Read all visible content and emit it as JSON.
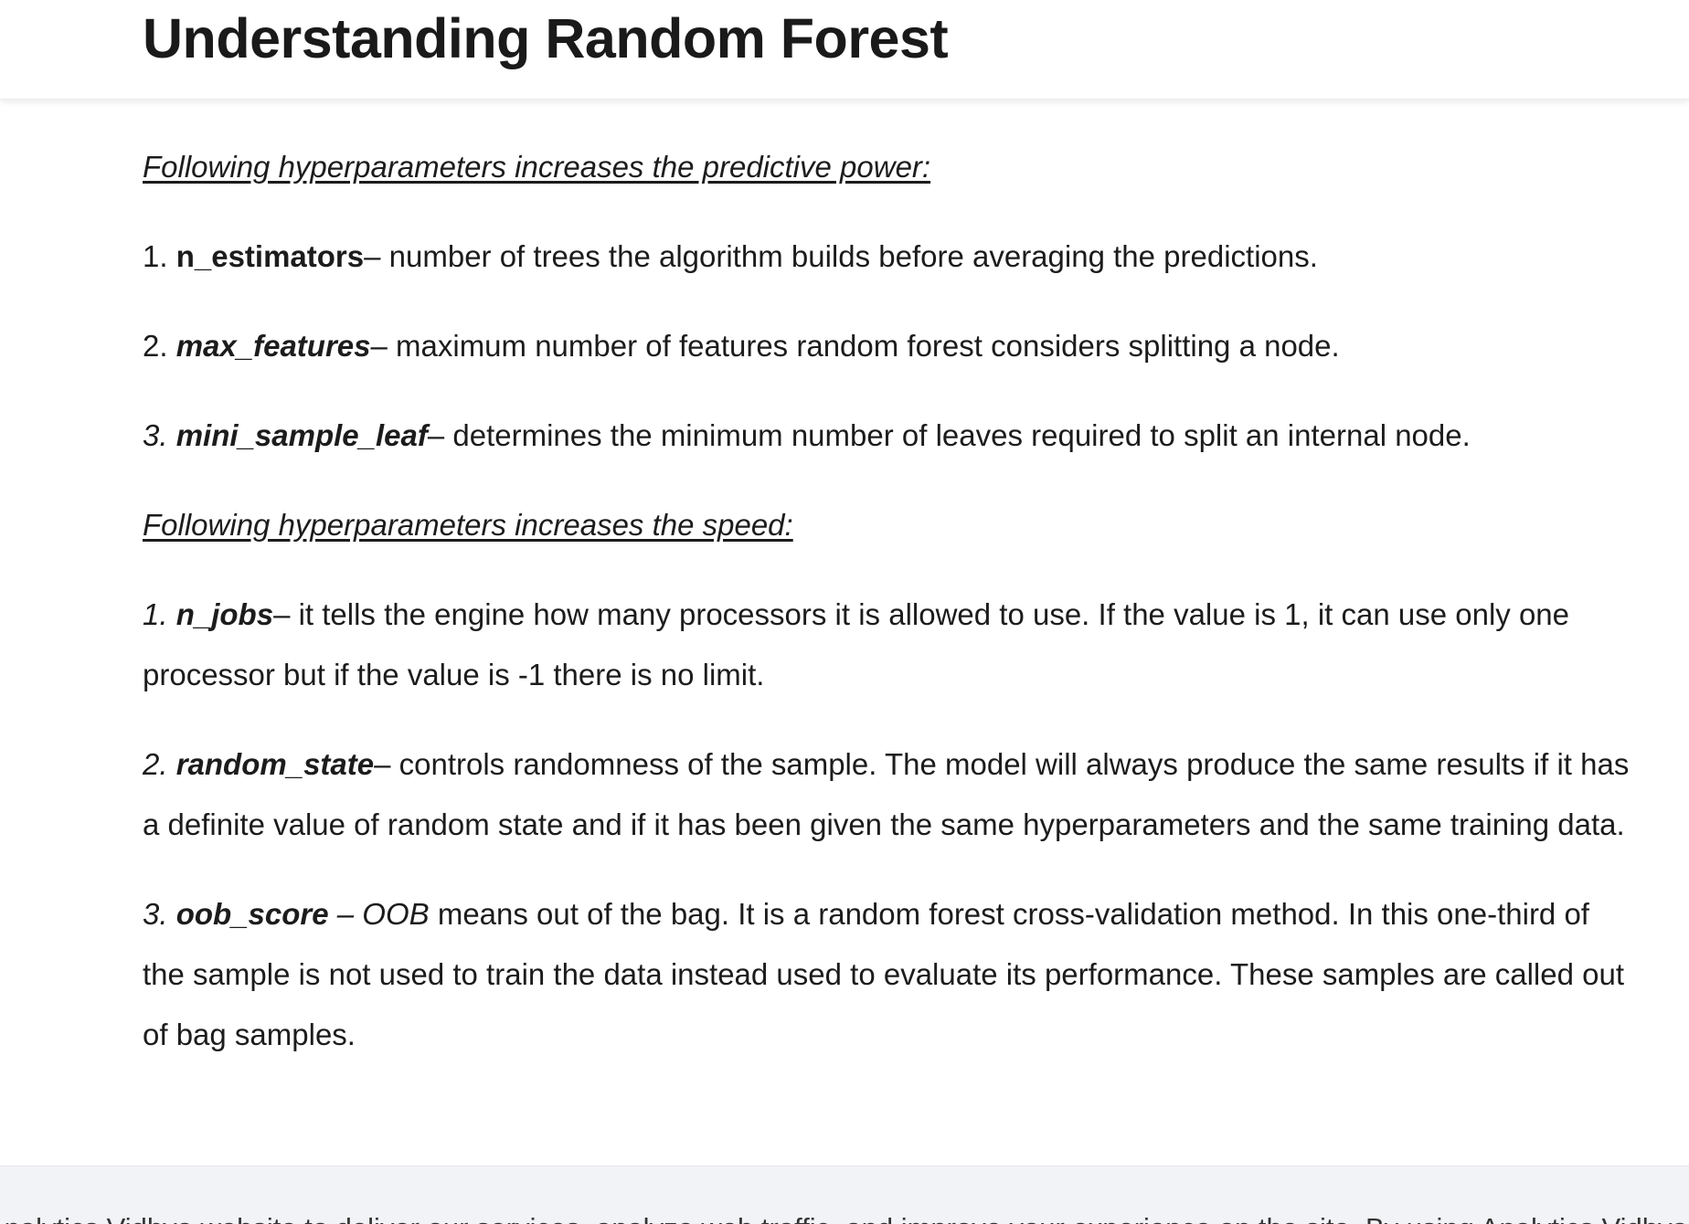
{
  "header": {
    "title": "Understanding Random Forest"
  },
  "sections": {
    "predictive": {
      "heading": "Following hyperparameters increases the predictive power:",
      "items": [
        {
          "num": "1.",
          "term": "n_estimators",
          "desc": "– number of trees the algorithm builds before averaging the predictions."
        },
        {
          "num": "2.",
          "term": "max_features",
          "desc": "– maximum number of features random forest considers splitting a node."
        },
        {
          "num": "3.",
          "term": "mini_sample_leaf",
          "desc": "– determines the minimum number of leaves required to split an internal node."
        }
      ]
    },
    "speed": {
      "heading": "Following hyperparameters increases the speed:",
      "items": [
        {
          "num": "1.",
          "term": "n_jobs",
          "desc_line1": "– it tells the engine how many processors it is allowed to use. If the value is 1, it can use only one",
          "desc_line2": "processor but if the value is -1 there is no limit."
        },
        {
          "num": "2.",
          "term": "random_state",
          "desc_line1": "– controls randomness of the sample. The model will always produce the same results if it has",
          "desc_line2": "a definite value of random state and if it has been given the same hyperparameters and the same training data."
        },
        {
          "num": "3.",
          "term": "oob_score",
          "sep": " – ",
          "term2": "OOB",
          "desc_line1": " means out of the bag. It is a random forest cross-validation method. In this one-third of",
          "desc_line2": "the sample is not used to train the data instead used to evaluate its performance. These samples are called out",
          "desc_line3": "of bag samples."
        }
      ]
    }
  },
  "footer": {
    "text": "Analytics Vidhya website to deliver our services, analyze web traffic, and improve your experience on the site. By using Analytics Vidhya"
  }
}
